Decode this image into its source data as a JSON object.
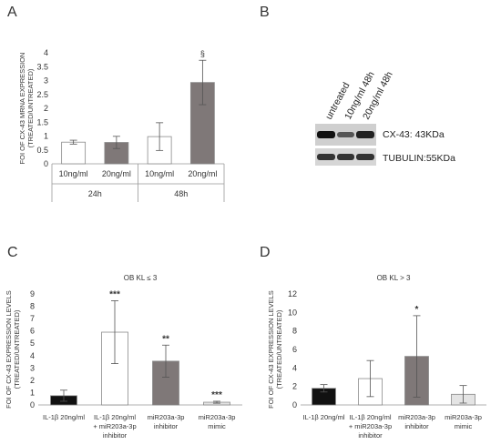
{
  "panels": {
    "A": "A",
    "B": "B",
    "C": "C",
    "D": "D"
  },
  "colors": {
    "white": "#ffffff",
    "gray": "#7f7878",
    "black": "#111111",
    "light": "#e4e4e4",
    "stroke": "#8a8a8a"
  },
  "chart_data": [
    {
      "id": "A",
      "type": "bar",
      "ylabel": "FOI OF CX-43 MRNA EXPRESSION (TREATED/UNTREATED)",
      "ylim": [
        0,
        4
      ],
      "yticks": [
        "0",
        "0.5",
        "1",
        "1.5",
        "2",
        "2.5",
        "3",
        "3.5",
        "4"
      ],
      "categories": [
        "10ng/ml",
        "20ng/ml",
        "10ng/ml",
        "20ng/ml"
      ],
      "groups": [
        "24h",
        "48h"
      ],
      "values": [
        0.78,
        0.77,
        0.98,
        2.93
      ],
      "errors": [
        0.07,
        0.22,
        0.5,
        0.8
      ],
      "fills": [
        "white",
        "gray",
        "white",
        "gray"
      ],
      "annotations": [
        "",
        "",
        "",
        "§"
      ]
    },
    {
      "id": "C",
      "type": "bar",
      "title": "OB KL ≤ 3",
      "ylabel": "FOI OF CX-43 EXPRESSION LEVELS (TREATED/UNTREATED)",
      "ylim": [
        0,
        9
      ],
      "yticks": [
        "0",
        "1",
        "2",
        "3",
        "4",
        "5",
        "6",
        "7",
        "8",
        "9"
      ],
      "categories": [
        [
          "IL-1β 20ng/ml"
        ],
        [
          "IL-1β 20ng/ml",
          "+ miR203a-3p",
          "inhibitor"
        ],
        [
          "miR203a-3p",
          "inhibitor"
        ],
        [
          "miR203a-3p",
          "mimic"
        ]
      ],
      "values": [
        0.75,
        5.9,
        3.55,
        0.22
      ],
      "errors": [
        0.45,
        2.55,
        1.3,
        0.08
      ],
      "fills": [
        "black",
        "white",
        "gray",
        "light"
      ],
      "annotations": [
        "",
        "***",
        "**",
        "***"
      ]
    },
    {
      "id": "D",
      "type": "bar",
      "title": "OB KL > 3",
      "ylabel": "FOI OF CX-43 EXPRESSION LEVELS (TREATED/UNTREATED)",
      "ylim": [
        0,
        12
      ],
      "yticks": [
        "0",
        "2",
        "4",
        "6",
        "8",
        "10",
        "12"
      ],
      "categories": [
        [
          "IL-1β 20ng/ml"
        ],
        [
          "IL-1β 20ng/ml",
          "+ miR203a-3p",
          "inhibitor"
        ],
        [
          "miR203a-3p",
          "inhibitor"
        ],
        [
          "miR203a-3p",
          "mimic"
        ]
      ],
      "values": [
        1.8,
        2.85,
        5.25,
        1.15
      ],
      "errors": [
        0.4,
        1.95,
        4.4,
        0.95
      ],
      "fills": [
        "black",
        "white",
        "gray",
        "light"
      ],
      "annotations": [
        "",
        "",
        "*",
        ""
      ]
    }
  ],
  "blot": {
    "lane_labels": [
      "untreated",
      "10ng/ml 48h",
      "20ng/ml 48h"
    ],
    "bands": [
      {
        "label": "CX-43: 43KDa",
        "intensity": [
          1.0,
          0.55,
          0.9
        ]
      },
      {
        "label": "TUBULIN:55KDa",
        "intensity": [
          0.85,
          0.85,
          0.85
        ]
      }
    ]
  }
}
